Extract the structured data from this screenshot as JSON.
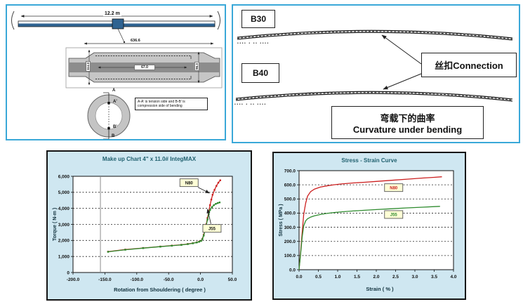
{
  "panel_pipe": {
    "length_label": "12.2 m",
    "detail_length_label": "636.6",
    "detail_center_label": "67.0",
    "detail_left_label": "114.3",
    "detail_right_label": "96.3",
    "marker_a": "A",
    "marker_a2": "A'",
    "marker_b2": "B'",
    "marker_b": "B",
    "note_line1": "A-A' is tension side and B-B' is",
    "note_line2": "compression side of bending"
  },
  "panel_curvature": {
    "b30": "B30",
    "b40": "B40",
    "connection_label": "丝扣Connection",
    "caption_cn": "弯载下的曲率",
    "caption_en": "Curvature under bending",
    "tick_marks_1": "•••• •  •• ••••",
    "tick_marks_2": "•••• •  •• ••••"
  },
  "chart_data": [
    {
      "type": "line",
      "title": "Make up Chart  4\" x 11.0#  IntegMAX",
      "xlabel": "Rotation from Shouldering  ( degree )",
      "ylabel": "Torque ( N-m )",
      "xlim": [
        -200,
        50
      ],
      "ylim": [
        0,
        6000
      ],
      "xticks": [
        -200,
        -150,
        -100,
        -50,
        0,
        50
      ],
      "xtick_labels": [
        "-200.0",
        "-150.0",
        "-100.0",
        "-50.0",
        "0.0",
        "50.0"
      ],
      "yticks": [
        0,
        1000,
        2000,
        3000,
        4000,
        5000,
        6000
      ],
      "ytick_labels": [
        "0",
        "1,000",
        "2,000",
        "3,000",
        "4,000",
        "5,000",
        "6,000"
      ],
      "grid_y_dashed": [
        1000,
        2000,
        3000,
        4000,
        5000
      ],
      "vline": -157,
      "legend_position": "none",
      "series": [
        {
          "name": "N80",
          "color": "#cc1f1f",
          "marker": true,
          "x": [
            -145,
            -118,
            -90,
            -63,
            -45,
            -30,
            -20,
            -12,
            -6,
            -2,
            1,
            3,
            5,
            7,
            9,
            11,
            13,
            15,
            17,
            19,
            22,
            25,
            28,
            31
          ],
          "y": [
            1300,
            1430,
            1530,
            1620,
            1680,
            1730,
            1780,
            1830,
            1880,
            1930,
            1980,
            2100,
            2350,
            2650,
            3000,
            3400,
            3800,
            4200,
            4550,
            4850,
            5150,
            5400,
            5600,
            5750
          ]
        },
        {
          "name": "J55",
          "color": "#2e8b2e",
          "marker": true,
          "x": [
            -145,
            -118,
            -90,
            -63,
            -45,
            -30,
            -20,
            -12,
            -6,
            -2,
            1,
            3,
            5,
            7,
            9,
            11,
            13,
            15,
            18,
            21,
            24,
            27,
            30
          ],
          "y": [
            1290,
            1420,
            1520,
            1610,
            1670,
            1720,
            1770,
            1820,
            1870,
            1920,
            1970,
            2080,
            2300,
            2600,
            2950,
            3300,
            3650,
            3900,
            4080,
            4200,
            4280,
            4330,
            4370
          ]
        }
      ],
      "annotations": [
        {
          "text": "N80",
          "x": -18,
          "y": 5600,
          "tipx": 14,
          "tipy": 4950,
          "color": "#111111"
        },
        {
          "text": "J55",
          "x": 18,
          "y": 2750,
          "tipx": 11,
          "tipy": 3950,
          "color": "#111111"
        }
      ]
    },
    {
      "type": "line",
      "title": "Stress - Strain Curve",
      "xlabel": "Strain ( % )",
      "ylabel": "Stress ( MPa )",
      "xlim": [
        0,
        4
      ],
      "ylim": [
        0,
        700
      ],
      "xticks": [
        0,
        0.5,
        1,
        1.5,
        2,
        2.5,
        3,
        3.5,
        4
      ],
      "xtick_labels": [
        "0.0",
        "0.5",
        "1.0",
        "1.5",
        "2.0",
        "2.5",
        "3.0",
        "3.5",
        "4.0"
      ],
      "yticks": [
        0,
        100,
        200,
        300,
        400,
        500,
        600,
        700
      ],
      "ytick_labels": [
        "0.0",
        "100.0",
        "200.0",
        "300.0",
        "400.0",
        "500.0",
        "600.0",
        "700.0"
      ],
      "grid_y_dashed": [
        100,
        200,
        300,
        400,
        500,
        600
      ],
      "vline": null,
      "legend_position": "none",
      "series": [
        {
          "name": "N80",
          "color": "#cc1f1f",
          "marker": false,
          "x": [
            0,
            0.04,
            0.08,
            0.12,
            0.17,
            0.22,
            0.3,
            0.4,
            0.55,
            0.7,
            0.9,
            1.1,
            1.4,
            1.7,
            2.0,
            2.4,
            2.8,
            3.2,
            3.5,
            3.7
          ],
          "y": [
            0,
            120,
            260,
            390,
            470,
            520,
            552,
            570,
            584,
            592,
            600,
            606,
            613,
            618,
            624,
            632,
            640,
            648,
            653,
            657
          ]
        },
        {
          "name": "J55",
          "color": "#2e8b2e",
          "marker": false,
          "x": [
            0,
            0.04,
            0.08,
            0.12,
            0.17,
            0.22,
            0.3,
            0.4,
            0.55,
            0.7,
            0.9,
            1.1,
            1.4,
            1.7,
            2.0,
            2.4,
            2.8,
            3.2,
            3.5,
            3.65
          ],
          "y": [
            0,
            110,
            230,
            310,
            345,
            360,
            372,
            381,
            390,
            397,
            404,
            409,
            415,
            420,
            425,
            431,
            437,
            442,
            446,
            448
          ]
        }
      ],
      "annotations": [
        {
          "text": "N80",
          "x": 2.45,
          "y": 580,
          "color": "#cc1f1f"
        },
        {
          "text": "J55",
          "x": 2.45,
          "y": 390,
          "color": "#2e8b2e"
        }
      ]
    }
  ]
}
